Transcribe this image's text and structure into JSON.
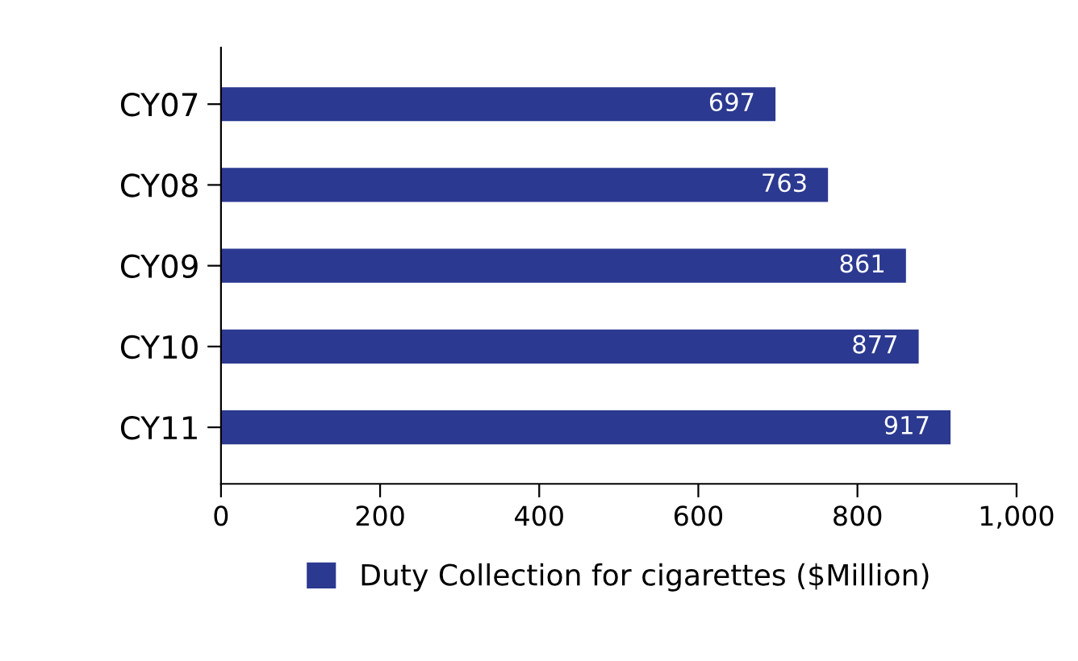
{
  "chart_data": {
    "type": "bar",
    "orientation": "horizontal",
    "categories": [
      "CY07",
      "CY08",
      "CY09",
      "CY10",
      "CY11"
    ],
    "series": [
      {
        "name": "Duty Collection for cigarettes ($Million)",
        "color": "#2b3990",
        "values": [
          697,
          763,
          861,
          877,
          917
        ]
      }
    ],
    "xlim": [
      0,
      1000
    ],
    "xticks": [
      0,
      200,
      400,
      600,
      800,
      {
        "value": 1000,
        "label": "1,000"
      }
    ],
    "data_labels": true,
    "legend": "bottom",
    "grid": false
  }
}
